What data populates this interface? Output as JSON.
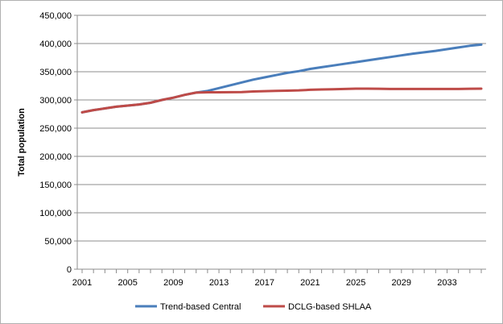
{
  "chart_data": {
    "type": "line",
    "title": "",
    "xlabel": "",
    "ylabel": "Total population",
    "ylim": [
      0,
      450000
    ],
    "yticks": [
      0,
      50000,
      100000,
      150000,
      200000,
      250000,
      300000,
      350000,
      400000,
      450000
    ],
    "ytick_labels": [
      "0",
      "50,000",
      "100,000",
      "150,000",
      "200,000",
      "250,000",
      "300,000",
      "350,000",
      "400,000",
      "450,000"
    ],
    "xlim": [
      2001,
      2036
    ],
    "xtick_labels": [
      "2001",
      "2005",
      "2009",
      "2013",
      "2017",
      "2021",
      "2025",
      "2029",
      "2033"
    ],
    "grid": true,
    "legend_position": "bottom",
    "x": [
      2001,
      2002,
      2003,
      2004,
      2005,
      2006,
      2007,
      2008,
      2009,
      2010,
      2011,
      2012,
      2013,
      2014,
      2015,
      2016,
      2017,
      2018,
      2019,
      2020,
      2021,
      2022,
      2023,
      2024,
      2025,
      2026,
      2027,
      2028,
      2029,
      2030,
      2031,
      2032,
      2033,
      2034,
      2035,
      2036
    ],
    "series": [
      {
        "name": "Trend-based Central",
        "color": "#4a7ebb",
        "values": [
          278000,
          282000,
          285000,
          288000,
          290000,
          292000,
          295000,
          300000,
          304000,
          309000,
          313000,
          316000,
          321000,
          326000,
          331000,
          336000,
          340000,
          344000,
          348000,
          351000,
          355000,
          358000,
          361000,
          364000,
          367000,
          370000,
          373000,
          376000,
          379000,
          382000,
          384500,
          387000,
          390000,
          393000,
          396000,
          398000
        ]
      },
      {
        "name": "DCLG-based SHLAA",
        "color": "#be4b48",
        "values": [
          278000,
          282000,
          285000,
          288000,
          290000,
          292000,
          295000,
          300000,
          304000,
          309000,
          313000,
          313500,
          313500,
          313800,
          314000,
          315000,
          315500,
          316000,
          316500,
          317000,
          318000,
          318500,
          319000,
          319500,
          320000,
          320000,
          319800,
          319500,
          319500,
          319500,
          319500,
          319500,
          319500,
          319500,
          319800,
          320000
        ]
      }
    ]
  }
}
